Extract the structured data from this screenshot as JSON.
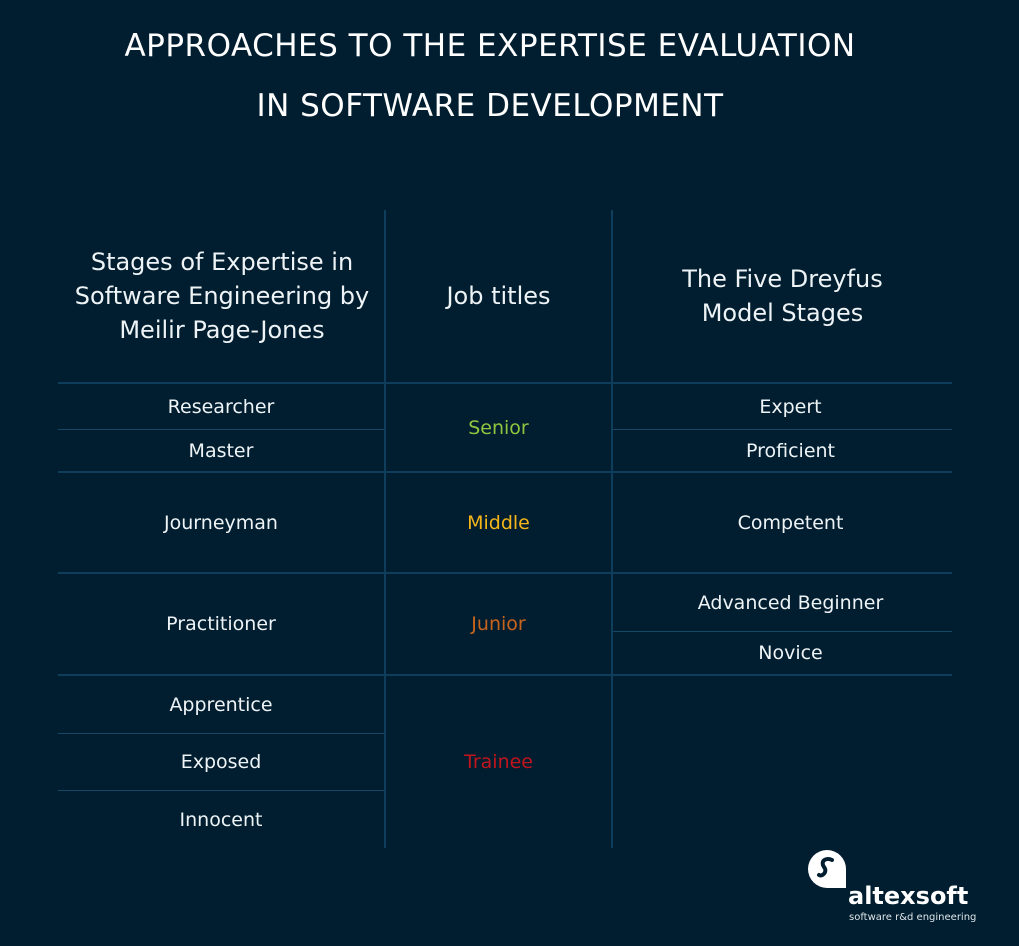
{
  "title_lines": [
    "APPROACHES TO THE EXPERTISE EVALUATION",
    "IN SOFTWARE DEVELOPMENT"
  ],
  "headers": {
    "page_jones": "Stages of Expertise in Software Engineering by Meilir Page-Jones",
    "job_titles": "Job titles",
    "dreyfus": "The Five Dreyfus Model Stages"
  },
  "page_jones": [
    "Researcher",
    "Master",
    "Journeyman",
    "Practitioner",
    "Apprentice",
    "Exposed",
    "Innocent"
  ],
  "job_titles": [
    {
      "label": "Senior",
      "color": "#8dc63f"
    },
    {
      "label": "Middle",
      "color": "#f5b51a"
    },
    {
      "label": "Junior",
      "color": "#c9641d"
    },
    {
      "label": "Trainee",
      "color": "#c1141d"
    }
  ],
  "dreyfus": [
    "Expert",
    "Proficient",
    "Competent",
    "Advanced Beginner",
    "Novice"
  ],
  "colors": {
    "background": "#001e2f",
    "grid": "#0f3e5c"
  },
  "logo": {
    "name": "altexsoft",
    "tagline": "software r&d engineering"
  }
}
